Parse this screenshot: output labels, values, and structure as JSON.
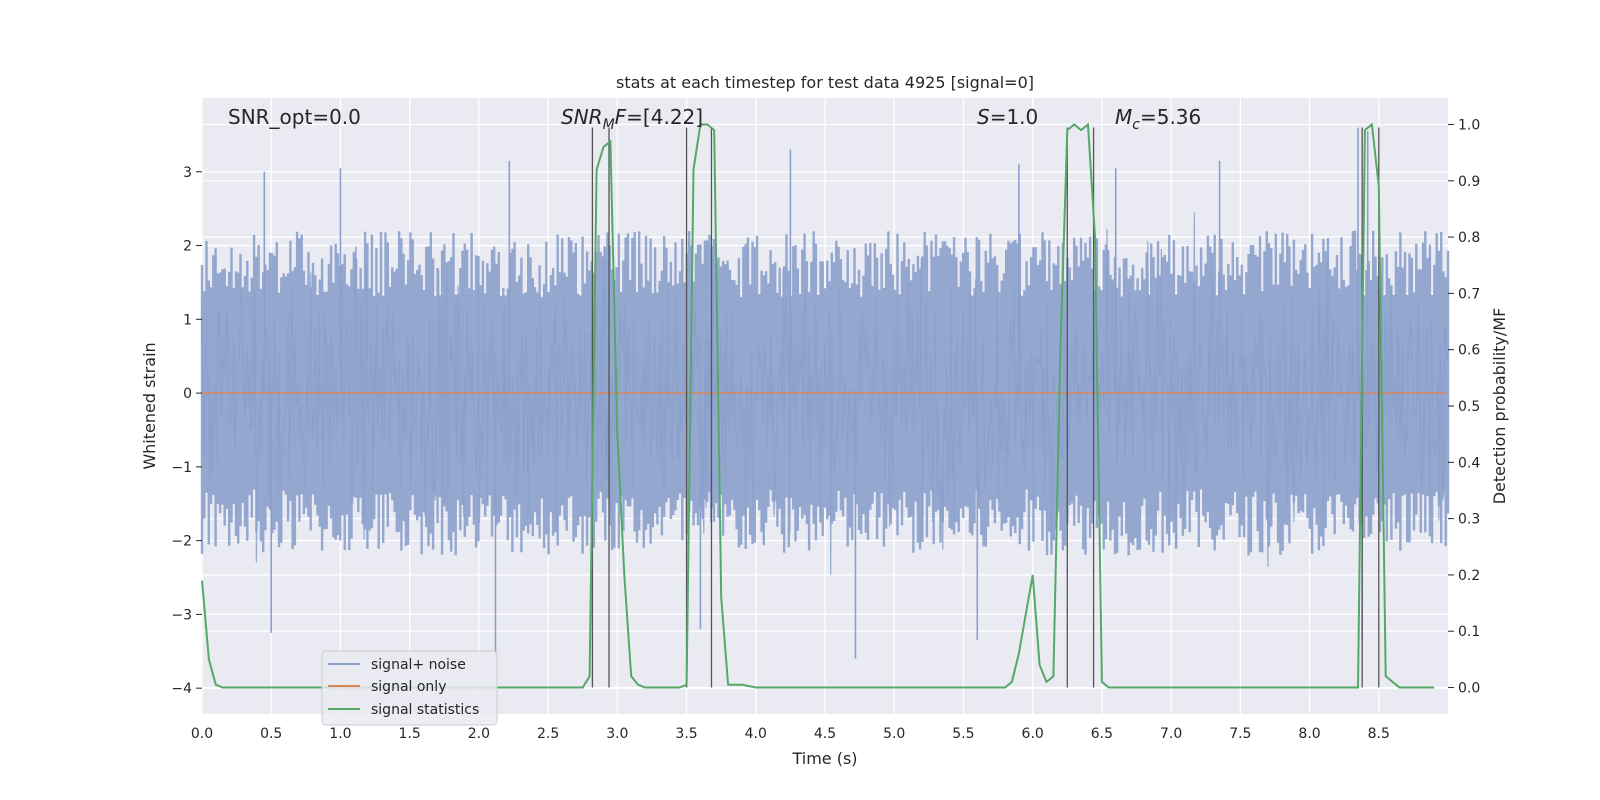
{
  "chart_data": {
    "type": "line",
    "title": "stats at each timestep for test data 4925 [signal=0]",
    "xlabel": "Time (s)",
    "ylabel": "Whitened strain",
    "y2label": "Detection probability/MF",
    "xlim": [
      0,
      9
    ],
    "ylim": [
      -4.35,
      4.0
    ],
    "y2lim": [
      -0.047,
      1.047
    ],
    "xticks": [
      "0.0",
      "0.5",
      "1.0",
      "1.5",
      "2.0",
      "2.5",
      "3.0",
      "3.5",
      "4.0",
      "4.5",
      "5.0",
      "5.5",
      "6.0",
      "6.5",
      "7.0",
      "7.5",
      "8.0",
      "8.5"
    ],
    "yticks": [
      "−4",
      "−3",
      "−2",
      "−1",
      "0",
      "1",
      "2",
      "3"
    ],
    "y2ticks": [
      "0.0",
      "0.1",
      "0.2",
      "0.3",
      "0.4",
      "0.5",
      "0.6",
      "0.7",
      "0.8",
      "0.9",
      "1.0"
    ],
    "grid": true,
    "annotations": {
      "snr_opt": "SNR_opt=0.0",
      "snr_mf_main": "SNR",
      "snr_mf_sub": "M",
      "snr_mf_tail": "F",
      "snr_mf_value": "=[4.22]",
      "s_main": "S",
      "s_value": "=1.0",
      "mc_main": "M",
      "mc_sub": "c",
      "mc_value": "=5.36"
    },
    "legend": {
      "placement": "lower-left",
      "entries": [
        "signal+ noise",
        "signal only",
        "signal statistics"
      ]
    },
    "series": [
      {
        "name": "signal+ noise",
        "color": "#8aa0cb",
        "kind": "noise",
        "envelope": [
          -2.2,
          2.2
        ],
        "spike_peaks": [
          {
            "x": 0.45,
            "y": 3.0
          },
          {
            "x": 1.0,
            "y": 3.05
          },
          {
            "x": 2.22,
            "y": 3.15
          },
          {
            "x": 2.12,
            "y": -3.55
          },
          {
            "x": 0.5,
            "y": -3.25
          },
          {
            "x": 4.72,
            "y": -3.6
          },
          {
            "x": 5.6,
            "y": -3.35
          },
          {
            "x": 8.38,
            "y": -3.35
          },
          {
            "x": 8.35,
            "y": 3.6
          },
          {
            "x": 8.42,
            "y": 3.55
          },
          {
            "x": 7.35,
            "y": 3.15
          },
          {
            "x": 4.25,
            "y": 3.3
          },
          {
            "x": 5.9,
            "y": 3.1
          },
          {
            "x": 6.6,
            "y": 3.05
          },
          {
            "x": 3.6,
            "y": -3.2
          }
        ]
      },
      {
        "name": "signal only",
        "color": "#dd8452",
        "x": [
          0,
          9
        ],
        "y": [
          0,
          0
        ]
      },
      {
        "name": "signal statistics",
        "color": "#55a868",
        "axis": "right",
        "x": [
          0.0,
          0.05,
          0.1,
          0.15,
          0.2,
          2.75,
          2.8,
          2.85,
          2.9,
          2.95,
          3.0,
          3.05,
          3.1,
          3.15,
          3.2,
          3.45,
          3.5,
          3.55,
          3.6,
          3.65,
          3.7,
          3.75,
          3.8,
          3.9,
          4.0,
          4.05,
          5.8,
          5.85,
          5.9,
          6.0,
          6.05,
          6.1,
          6.15,
          6.2,
          6.25,
          6.3,
          6.35,
          6.4,
          6.45,
          6.5,
          6.55,
          6.6,
          6.65,
          8.35,
          8.4,
          8.45,
          8.5,
          8.55,
          8.6,
          8.65,
          8.7,
          8.75,
          8.9
        ],
        "y": [
          0.19,
          0.05,
          0.005,
          0.0,
          0.0,
          0.0,
          0.02,
          0.92,
          0.96,
          0.97,
          0.45,
          0.2,
          0.02,
          0.005,
          0.0,
          0.0,
          0.005,
          0.92,
          1.0,
          1.0,
          0.99,
          0.16,
          0.005,
          0.005,
          0.0,
          0.0,
          0.0,
          0.01,
          0.06,
          0.2,
          0.04,
          0.01,
          0.02,
          0.6,
          0.99,
          1.0,
          0.99,
          1.0,
          0.8,
          0.01,
          0.0,
          0.0,
          0.0,
          0.0,
          0.99,
          1.0,
          0.89,
          0.02,
          0.01,
          0.0,
          0.0,
          0.0,
          0.0
        ]
      }
    ],
    "vlines": [
      {
        "x": 2.82,
        "ymax": 3.6
      },
      {
        "x": 2.94,
        "ymax": 3.6
      },
      {
        "x": 3.5,
        "ymax": 3.6
      },
      {
        "x": 3.68,
        "ymax": 3.6
      },
      {
        "x": 6.25,
        "ymax": 3.6
      },
      {
        "x": 6.44,
        "ymax": 3.6
      },
      {
        "x": 8.38,
        "ymax": 3.6
      },
      {
        "x": 8.5,
        "ymax": 3.6
      }
    ]
  }
}
